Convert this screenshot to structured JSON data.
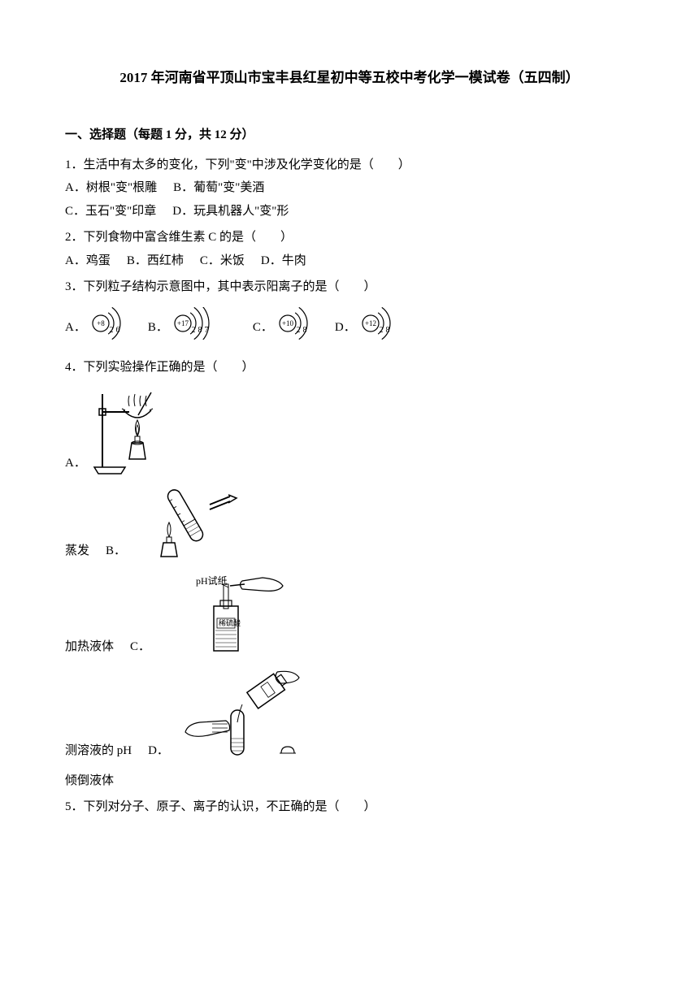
{
  "title": "2017 年河南省平顶山市宝丰县红星初中等五校中考化学一模试卷（五四制）",
  "section1": {
    "header": "一、选择题（每题 1 分，共 12 分）"
  },
  "q1": {
    "text": "1．生活中有太多的变化，下列\"变\"中涉及化学变化的是（　　）",
    "a": "A．树根\"变\"根雕",
    "b": "B．葡萄\"变\"美酒",
    "c": "C．玉石\"变\"印章",
    "d": "D．玩具机器人\"变\"形"
  },
  "q2": {
    "text": "2．下列食物中富含维生素 C 的是（　　）",
    "a": "A．鸡蛋",
    "b": "B．西红柿",
    "c": "C．米饭",
    "d": "D．牛肉"
  },
  "q3": {
    "text": "3．下列粒子结构示意图中，其中表示阳离子的是（　　）",
    "a": "A．",
    "b": "B．",
    "c": "C．",
    "d": "D．",
    "atoms": [
      {
        "center": "+8",
        "shells": [
          "2",
          "6"
        ]
      },
      {
        "center": "+17",
        "shells": [
          "2",
          "8",
          "7"
        ]
      },
      {
        "center": "+10",
        "shells": [
          "2",
          "8"
        ]
      },
      {
        "center": "+12",
        "shells": [
          "2",
          "8"
        ]
      }
    ]
  },
  "q4": {
    "text": "4．下列实验操作正确的是（　　）",
    "a": "A．",
    "aLabel": "蒸发",
    "b": "B．",
    "bLabel": "加热液体",
    "c": "C．",
    "cLabel": "测溶液的 pH",
    "cText1": "pH试纸",
    "cText2": "稀硫酸",
    "d": "D．",
    "dLabel": "倾倒液体"
  },
  "q5": {
    "text": "5．下列对分子、原子、离子的认识，不正确的是（　　）"
  },
  "colors": {
    "text": "#000000",
    "bg": "#ffffff",
    "stroke": "#000000"
  }
}
